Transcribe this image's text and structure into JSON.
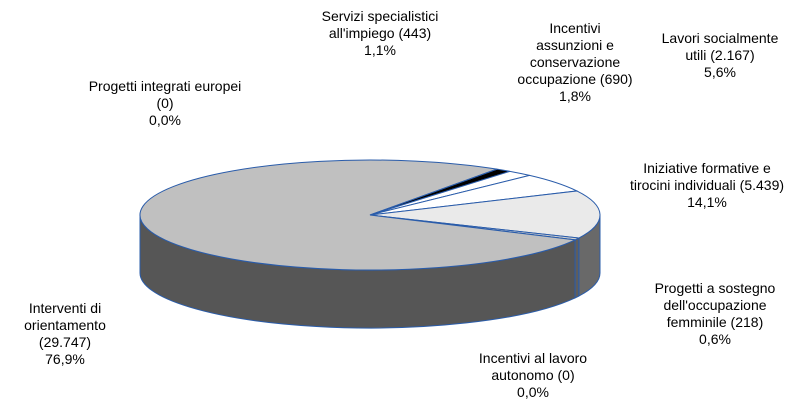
{
  "chart_data": {
    "type": "pie",
    "categories": [
      "Servizi specialistici all'impiego (443)",
      "Incentivi assunzioni e conservazione occupazione (690)",
      "Lavori socialmente utili (2.167)",
      "Iniziative formative e tirocini individuali (5.439)",
      "Progetti a sostegno dell'occupazione femminile (218)",
      "Incentivi al lavoro autonomo (0)",
      "Interventi di orientamento (29.747)",
      "Progetti integrati europei (0)"
    ],
    "values": [
      1.1,
      1.8,
      5.6,
      14.1,
      0.6,
      0,
      76.9,
      0
    ],
    "value_labels": [
      "1,1%",
      "1,8%",
      "5,6%",
      "14,1%",
      "0,6%",
      "0,0%",
      "76,9%",
      "0,0%"
    ],
    "colors": [
      "#000000",
      "#ffffff",
      "#ffffff",
      "#eaeaea",
      "#d0d0d0",
      "#a0a0a0",
      "#c0c0c0",
      "#808080"
    ]
  }
}
